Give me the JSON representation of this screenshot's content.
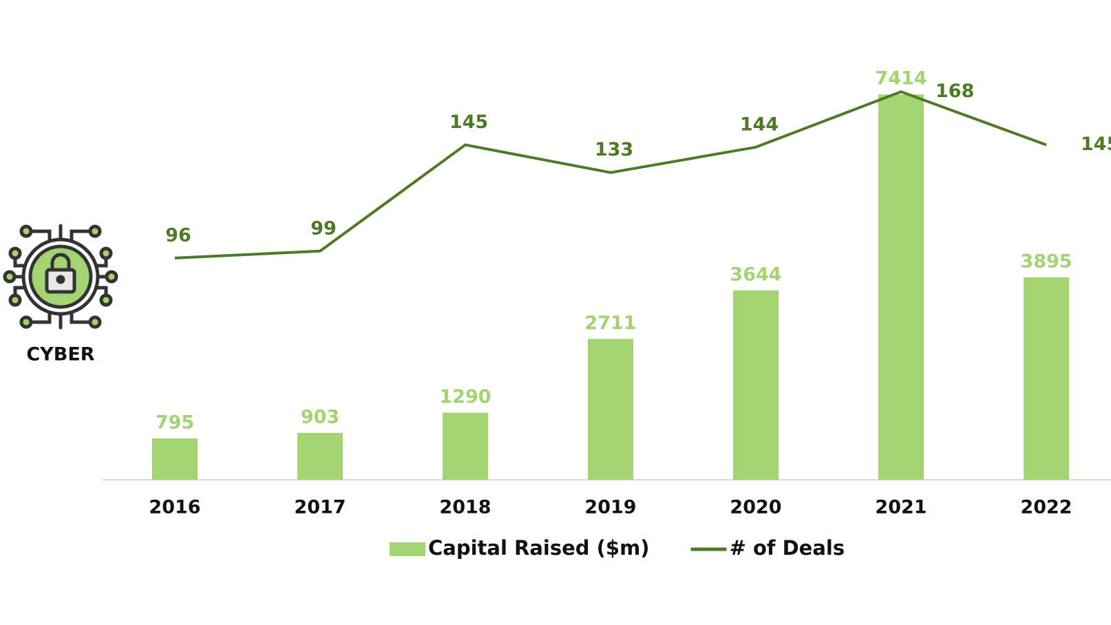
{
  "chart_data": {
    "type": "bar_line",
    "icon_label": "CYBER",
    "categories": [
      "2016",
      "2017",
      "2018",
      "2019",
      "2020",
      "2021",
      "2022"
    ],
    "series": [
      {
        "name": "Capital Raised ($m)",
        "type": "bar",
        "color": "#a4d372",
        "values": [
          795,
          903,
          1290,
          2711,
          3644,
          7414,
          3895
        ]
      },
      {
        "name": "# of Deals",
        "type": "line",
        "axis": "y2",
        "color": "#4e7a25",
        "values": [
          96,
          99,
          145,
          133,
          144,
          168,
          145
        ]
      }
    ],
    "ylim": [
      0,
      8000
    ],
    "y2lim": [
      0,
      180
    ]
  }
}
